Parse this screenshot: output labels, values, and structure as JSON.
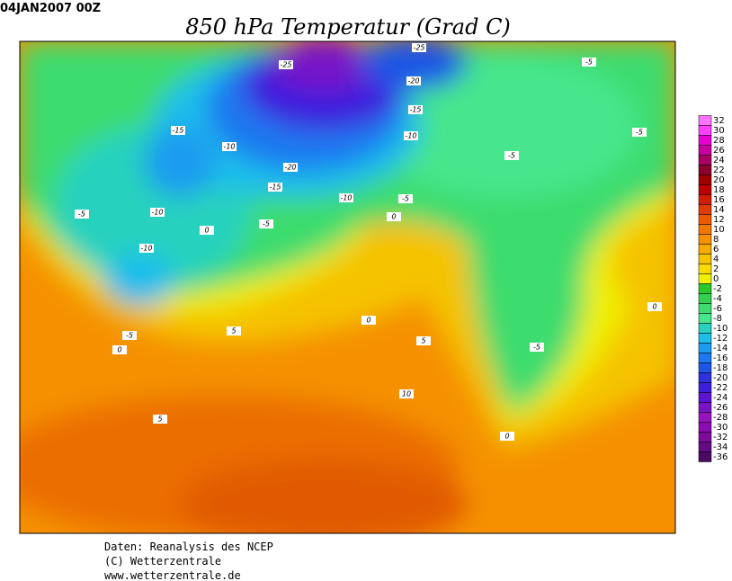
{
  "header": {
    "date": "04JAN2007 00Z",
    "title": "850 hPa Temperatur (Grad C)"
  },
  "colorbar": {
    "levels": [
      32,
      30,
      28,
      26,
      24,
      22,
      20,
      18,
      16,
      14,
      12,
      10,
      8,
      6,
      4,
      2,
      0,
      -2,
      -4,
      -6,
      -8,
      -10,
      -12,
      -14,
      -16,
      -18,
      -20,
      -22,
      -24,
      -26,
      -28,
      -30,
      -32,
      -34,
      -36
    ],
    "colors": [
      "#ff73ff",
      "#ff40ff",
      "#e600d2",
      "#c800a0",
      "#aa0064",
      "#8c0032",
      "#a00000",
      "#be0000",
      "#d21e00",
      "#e13c00",
      "#eb5a00",
      "#f07800",
      "#f59100",
      "#f5aa00",
      "#f5c300",
      "#fadc00",
      "#f0f000",
      "#28c828",
      "#32d250",
      "#3cdc6e",
      "#46e68c",
      "#28d2be",
      "#1ebeeb",
      "#1e9bf0",
      "#1e78f0",
      "#1e55e6",
      "#2d32dc",
      "#3c1edc",
      "#5a14d2",
      "#7814c8",
      "#9614be",
      "#8c0ab4",
      "#7d0a9b",
      "#640a82",
      "#4b0a64"
    ]
  },
  "contour_labels": [
    -25,
    -25,
    -20,
    -15,
    -15,
    -10,
    -10,
    -5,
    -5,
    -5,
    -20,
    -15,
    -10,
    -5,
    0,
    -5,
    -10,
    -5,
    0,
    -10,
    -5,
    0,
    5,
    0,
    5,
    10,
    -5,
    0,
    0,
    5
  ],
  "footer": {
    "lines": [
      "Daten: Reanalysis des NCEP",
      "(C) Wetterzentrale",
      "www.wetterzentrale.de"
    ]
  }
}
